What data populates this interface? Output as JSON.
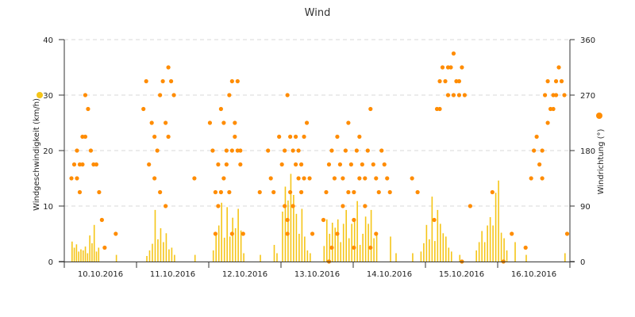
{
  "chart_data": {
    "type": "bar",
    "title": "Wind",
    "y_left": {
      "label": "Windgeschwindigkeit (km/h)",
      "range": [
        0,
        40
      ],
      "ticks": [
        "0",
        "10",
        "20",
        "30",
        "40"
      ],
      "marker_color": "#f5c518"
    },
    "y_right": {
      "label": "Windrichtung (°)",
      "range": [
        0,
        360
      ],
      "ticks": [
        "0",
        "90",
        "180",
        "270",
        "360"
      ],
      "marker_color": "#ff8c00"
    },
    "x": {
      "ticks": [
        "10.10.2016",
        "11.10.2016",
        "12.10.2016",
        "13.10.2016",
        "14.10.2016",
        "15.10.2016",
        "16.10.2016"
      ],
      "range_days": [
        0,
        7
      ]
    },
    "grid": true,
    "series": [
      {
        "kind": "bars",
        "axis": "left",
        "color": "#f5c518",
        "points": [
          [
            0.0,
            3.6
          ],
          [
            0.04,
            2.5
          ],
          [
            0.08,
            3.1
          ],
          [
            0.12,
            1.8
          ],
          [
            0.16,
            2.2
          ],
          [
            0.2,
            2.0
          ],
          [
            0.24,
            2.7
          ],
          [
            0.28,
            1.5
          ],
          [
            0.32,
            4.7
          ],
          [
            0.36,
            3.3
          ],
          [
            0.4,
            6.6
          ],
          [
            0.44,
            1.8
          ],
          [
            0.48,
            2.5
          ],
          [
            0.8,
            1.2
          ],
          [
            1.35,
            1.0
          ],
          [
            1.4,
            2.0
          ],
          [
            1.45,
            3.2
          ],
          [
            1.5,
            9.3
          ],
          [
            1.55,
            4.0
          ],
          [
            1.6,
            6.0
          ],
          [
            1.65,
            3.5
          ],
          [
            1.7,
            5.1
          ],
          [
            1.75,
            2.2
          ],
          [
            1.8,
            2.5
          ],
          [
            1.85,
            1.2
          ],
          [
            2.22,
            1.2
          ],
          [
            2.55,
            2.0
          ],
          [
            2.6,
            5.0
          ],
          [
            2.65,
            6.5
          ],
          [
            2.7,
            10.6
          ],
          [
            2.75,
            4.3
          ],
          [
            2.8,
            9.8
          ],
          [
            2.85,
            4.5
          ],
          [
            2.9,
            7.9
          ],
          [
            2.95,
            6.0
          ],
          [
            3.0,
            9.5
          ],
          [
            3.05,
            5.6
          ],
          [
            3.1,
            1.5
          ],
          [
            3.4,
            1.2
          ],
          [
            3.65,
            3.0
          ],
          [
            3.7,
            1.5
          ],
          [
            3.8,
            9.0
          ],
          [
            3.85,
            13.5
          ],
          [
            3.9,
            11.0
          ],
          [
            3.95,
            15.8
          ],
          [
            4.0,
            12.0
          ],
          [
            4.05,
            8.6
          ],
          [
            4.1,
            5.0
          ],
          [
            4.15,
            9.5
          ],
          [
            4.2,
            4.5
          ],
          [
            4.25,
            2.0
          ],
          [
            4.3,
            1.5
          ],
          [
            4.55,
            2.8
          ],
          [
            4.6,
            7.6
          ],
          [
            4.65,
            5.0
          ],
          [
            4.7,
            7.0
          ],
          [
            4.75,
            6.1
          ],
          [
            4.8,
            7.6
          ],
          [
            4.85,
            3.5
          ],
          [
            4.9,
            6.8
          ],
          [
            4.95,
            9.3
          ],
          [
            5.0,
            4.2
          ],
          [
            5.05,
            6.8
          ],
          [
            5.1,
            7.6
          ],
          [
            5.15,
            10.9
          ],
          [
            5.2,
            3.0
          ],
          [
            5.25,
            5.0
          ],
          [
            5.3,
            8.1
          ],
          [
            5.35,
            6.8
          ],
          [
            5.4,
            9.3
          ],
          [
            5.45,
            4.2
          ],
          [
            5.5,
            5.0
          ],
          [
            5.75,
            4.5
          ],
          [
            5.85,
            1.5
          ],
          [
            6.15,
            1.5
          ],
          [
            6.3,
            1.8
          ],
          [
            6.35,
            3.3
          ],
          [
            6.4,
            6.6
          ],
          [
            6.45,
            4.0
          ],
          [
            6.5,
            11.7
          ],
          [
            6.55,
            3.7
          ],
          [
            6.6,
            9.3
          ],
          [
            6.65,
            6.8
          ],
          [
            6.7,
            5.1
          ],
          [
            6.75,
            4.5
          ],
          [
            6.8,
            2.5
          ],
          [
            6.85,
            1.8
          ],
          [
            7.0,
            1.2
          ],
          [
            7.3,
            2.0
          ],
          [
            7.35,
            3.5
          ],
          [
            7.4,
            5.5
          ],
          [
            7.45,
            3.5
          ],
          [
            7.5,
            6.5
          ],
          [
            7.55,
            8.0
          ],
          [
            7.6,
            6.5
          ],
          [
            7.65,
            12.4
          ],
          [
            7.7,
            14.6
          ],
          [
            7.75,
            5.2
          ],
          [
            7.8,
            4.2
          ],
          [
            7.85,
            2.0
          ],
          [
            8.0,
            3.5
          ],
          [
            8.2,
            1.2
          ],
          [
            8.9,
            1.5
          ]
        ]
      },
      {
        "kind": "markers",
        "axis": "right",
        "color": "#ff8c00",
        "points": [
          [
            0.0,
            135
          ],
          [
            0.05,
            157.5
          ],
          [
            0.1,
            180
          ],
          [
            0.15,
            157.5
          ],
          [
            0.2,
            202.5
          ],
          [
            0.25,
            270
          ],
          [
            0.3,
            247.5
          ],
          [
            0.35,
            180
          ],
          [
            0.4,
            157.5
          ],
          [
            0.45,
            157.5
          ],
          [
            0.5,
            112.5
          ],
          [
            0.55,
            67.5
          ],
          [
            0.6,
            22.5
          ],
          [
            0.1,
            135
          ],
          [
            0.15,
            112.5
          ],
          [
            0.2,
            157.5
          ],
          [
            0.25,
            202.5
          ],
          [
            0.8,
            45
          ],
          [
            1.3,
            247.5
          ],
          [
            1.35,
            292.5
          ],
          [
            1.4,
            157.5
          ],
          [
            1.45,
            225
          ],
          [
            1.5,
            202.5
          ],
          [
            1.55,
            180
          ],
          [
            1.6,
            270
          ],
          [
            1.65,
            292.5
          ],
          [
            1.7,
            225
          ],
          [
            1.75,
            315
          ],
          [
            1.8,
            292.5
          ],
          [
            1.85,
            270
          ],
          [
            1.5,
            135
          ],
          [
            1.6,
            112.5
          ],
          [
            1.7,
            90
          ],
          [
            1.75,
            202.5
          ],
          [
            2.22,
            135
          ],
          [
            2.5,
            225
          ],
          [
            2.55,
            180
          ],
          [
            2.6,
            112.5
          ],
          [
            2.65,
            157.5
          ],
          [
            2.7,
            247.5
          ],
          [
            2.75,
            225
          ],
          [
            2.8,
            180
          ],
          [
            2.85,
            270
          ],
          [
            2.9,
            292.5
          ],
          [
            2.95,
            202.5
          ],
          [
            3.0,
            180
          ],
          [
            3.05,
            157.5
          ],
          [
            3.1,
            45
          ],
          [
            2.6,
            45
          ],
          [
            2.7,
            112.5
          ],
          [
            2.75,
            135
          ],
          [
            2.8,
            157.5
          ],
          [
            2.9,
            180
          ],
          [
            2.95,
            225
          ],
          [
            3.0,
            292.5
          ],
          [
            3.05,
            180
          ],
          [
            2.65,
            90
          ],
          [
            2.85,
            112.5
          ],
          [
            2.9,
            45
          ],
          [
            3.4,
            112.5
          ],
          [
            3.55,
            180
          ],
          [
            3.6,
            135
          ],
          [
            3.65,
            112.5
          ],
          [
            3.75,
            202.5
          ],
          [
            3.8,
            157.5
          ],
          [
            3.85,
            180
          ],
          [
            3.9,
            270
          ],
          [
            3.95,
            202.5
          ],
          [
            4.0,
            180
          ],
          [
            4.05,
            157.5
          ],
          [
            4.1,
            135
          ],
          [
            4.15,
            112.5
          ],
          [
            4.2,
            202.5
          ],
          [
            4.25,
            225
          ],
          [
            4.3,
            135
          ],
          [
            4.35,
            45
          ],
          [
            3.85,
            90
          ],
          [
            3.9,
            67.5
          ],
          [
            3.95,
            112.5
          ],
          [
            4.05,
            202.5
          ],
          [
            4.1,
            180
          ],
          [
            4.15,
            157.5
          ],
          [
            4.2,
            135
          ],
          [
            3.9,
            45
          ],
          [
            4.0,
            90
          ],
          [
            4.55,
            67.5
          ],
          [
            4.6,
            112.5
          ],
          [
            4.65,
            157.5
          ],
          [
            4.7,
            180
          ],
          [
            4.75,
            135
          ],
          [
            4.8,
            202.5
          ],
          [
            4.85,
            157.5
          ],
          [
            4.9,
            135
          ],
          [
            4.95,
            180
          ],
          [
            5.0,
            225
          ],
          [
            5.05,
            157.5
          ],
          [
            5.1,
            112.5
          ],
          [
            5.15,
            180
          ],
          [
            5.2,
            202.5
          ],
          [
            5.25,
            157.5
          ],
          [
            5.3,
            135
          ],
          [
            5.35,
            180
          ],
          [
            5.4,
            247.5
          ],
          [
            5.45,
            157.5
          ],
          [
            5.5,
            135
          ],
          [
            5.55,
            112.5
          ],
          [
            5.6,
            180
          ],
          [
            5.65,
            157.5
          ],
          [
            5.7,
            135
          ],
          [
            5.75,
            112.5
          ],
          [
            4.7,
            22.5
          ],
          [
            4.8,
            45
          ],
          [
            4.9,
            90
          ],
          [
            5.0,
            112.5
          ],
          [
            5.1,
            67.5
          ],
          [
            5.2,
            135
          ],
          [
            5.3,
            90
          ],
          [
            5.4,
            22.5
          ],
          [
            5.5,
            45
          ],
          [
            4.65,
            0
          ],
          [
            5.1,
            22.5
          ],
          [
            6.15,
            135
          ],
          [
            6.25,
            112.5
          ],
          [
            6.55,
            67.5
          ],
          [
            6.6,
            247.5
          ],
          [
            6.65,
            292.5
          ],
          [
            6.7,
            315
          ],
          [
            6.75,
            292.5
          ],
          [
            6.8,
            270
          ],
          [
            6.85,
            315
          ],
          [
            6.9,
            337.5
          ],
          [
            6.95,
            292.5
          ],
          [
            7.0,
            270
          ],
          [
            7.05,
            315
          ],
          [
            7.1,
            270
          ],
          [
            6.65,
            247.5
          ],
          [
            6.8,
            315
          ],
          [
            6.9,
            270
          ],
          [
            7.0,
            292.5
          ],
          [
            7.05,
            0
          ],
          [
            7.2,
            90
          ],
          [
            7.6,
            112.5
          ],
          [
            7.8,
            0
          ],
          [
            7.95,
            45
          ],
          [
            8.2,
            22.5
          ],
          [
            8.3,
            135
          ],
          [
            8.35,
            180
          ],
          [
            8.4,
            202.5
          ],
          [
            8.45,
            157.5
          ],
          [
            8.5,
            180
          ],
          [
            8.55,
            270
          ],
          [
            8.6,
            292.5
          ],
          [
            8.65,
            247.5
          ],
          [
            8.7,
            270
          ],
          [
            8.75,
            292.5
          ],
          [
            8.8,
            315
          ],
          [
            8.85,
            292.5
          ],
          [
            8.9,
            270
          ],
          [
            8.5,
            135
          ],
          [
            8.6,
            225
          ],
          [
            8.7,
            247.5
          ],
          [
            8.75,
            270
          ],
          [
            8.95,
            45
          ]
        ]
      }
    ]
  }
}
